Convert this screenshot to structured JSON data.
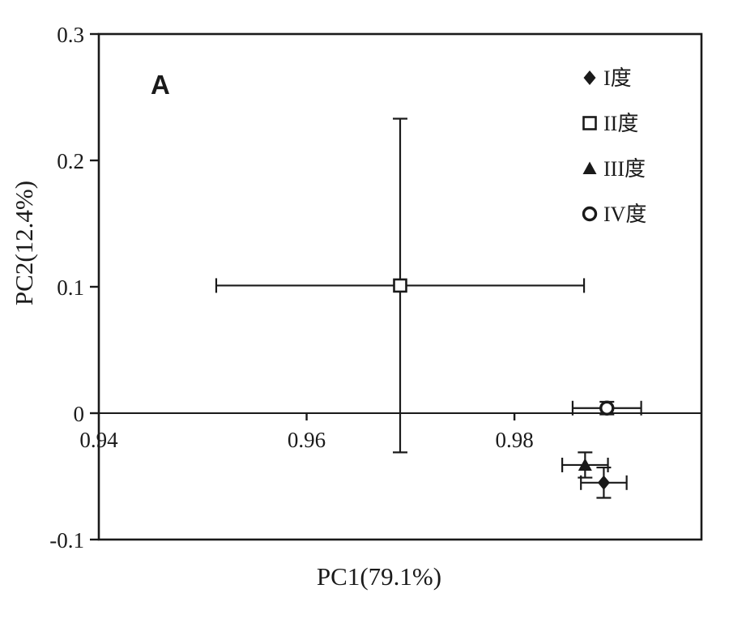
{
  "figure": {
    "panel_label": "A",
    "ink_color": "#1a1a1a",
    "background": "#ffffff"
  },
  "chart_data": {
    "type": "scatter",
    "title": "",
    "xlabel": "PC1(79.1%)",
    "ylabel": "PC2(12.4%)",
    "xlim": [
      0.94,
      0.998
    ],
    "ylim": [
      -0.1,
      0.3
    ],
    "xticks": [
      {
        "v": 0.94,
        "label": "0.94"
      },
      {
        "v": 0.96,
        "label": "0.96"
      },
      {
        "v": 0.98,
        "label": "0.98"
      }
    ],
    "yticks": [
      {
        "v": 0.3,
        "label": "0.3"
      },
      {
        "v": 0.2,
        "label": "0.2"
      },
      {
        "v": 0.1,
        "label": "0.1"
      },
      {
        "v": 0,
        "label": "0"
      },
      {
        "v": -0.1,
        "label": "-0.1"
      }
    ],
    "zero_line_y": 0,
    "grid": false,
    "legend_position": "top-right-inside",
    "series": [
      {
        "name": "I度",
        "marker": "filled-diamond",
        "points": [
          {
            "x": 0.9886,
            "y": -0.055,
            "xerr": 0.0022,
            "yerr": 0.012
          }
        ]
      },
      {
        "name": "II度",
        "marker": "open-square",
        "points": [
          {
            "x": 0.969,
            "y": 0.101,
            "xerr": 0.0177,
            "yerr": 0.132
          }
        ]
      },
      {
        "name": "III度",
        "marker": "filled-triangle",
        "points": [
          {
            "x": 0.9868,
            "y": -0.041,
            "xerr": 0.0022,
            "yerr": 0.01
          }
        ]
      },
      {
        "name": "IV度",
        "marker": "open-circle",
        "points": [
          {
            "x": 0.9889,
            "y": 0.004,
            "xerr": 0.0033,
            "yerr": 0.005
          }
        ]
      }
    ]
  }
}
